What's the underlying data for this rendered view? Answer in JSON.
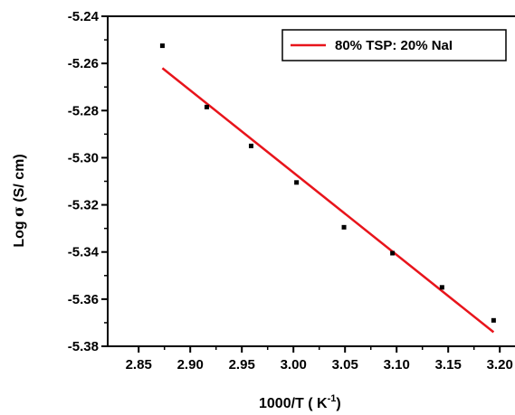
{
  "chart_data": {
    "type": "scatter",
    "xlabel": "1000/T ( K",
    "xlabel_sup": "-1",
    "xlabel_close": ")",
    "ylabel_prefix": "Log ",
    "ylabel_symbol": "σ",
    "ylabel_suffix": " (S/ cm)",
    "xlim": [
      2.82,
      3.22
    ],
    "ylim": [
      -5.38,
      -5.24
    ],
    "xticks": [
      2.85,
      2.9,
      2.95,
      3.0,
      3.05,
      3.1,
      3.15,
      3.2
    ],
    "xtick_labels": [
      "2.85",
      "2.90",
      "2.95",
      "3.00",
      "3.05",
      "3.10",
      "3.15",
      "3.20"
    ],
    "yticks": [
      -5.24,
      -5.26,
      -5.28,
      -5.3,
      -5.32,
      -5.34,
      -5.36,
      -5.38
    ],
    "ytick_labels": [
      "-5.24",
      "-5.26",
      "-5.28",
      "-5.30",
      "-5.32",
      "-5.34",
      "-5.36",
      "-5.38"
    ],
    "grid": false,
    "legend_position": "top-right",
    "series": [
      {
        "kind": "points",
        "color": "#000000",
        "points": [
          [
            2.873,
            -5.2525
          ],
          [
            2.916,
            -5.2785
          ],
          [
            2.959,
            -5.295
          ],
          [
            3.003,
            -5.3105
          ],
          [
            3.049,
            -5.3295
          ],
          [
            3.096,
            -5.3405
          ],
          [
            3.144,
            -5.355
          ],
          [
            3.194,
            -5.369
          ]
        ]
      },
      {
        "name": "80% TSP: 20% NaI",
        "kind": "line",
        "color": "#e8141b",
        "points": [
          [
            2.873,
            -5.262
          ],
          [
            3.194,
            -5.374
          ]
        ]
      }
    ]
  }
}
